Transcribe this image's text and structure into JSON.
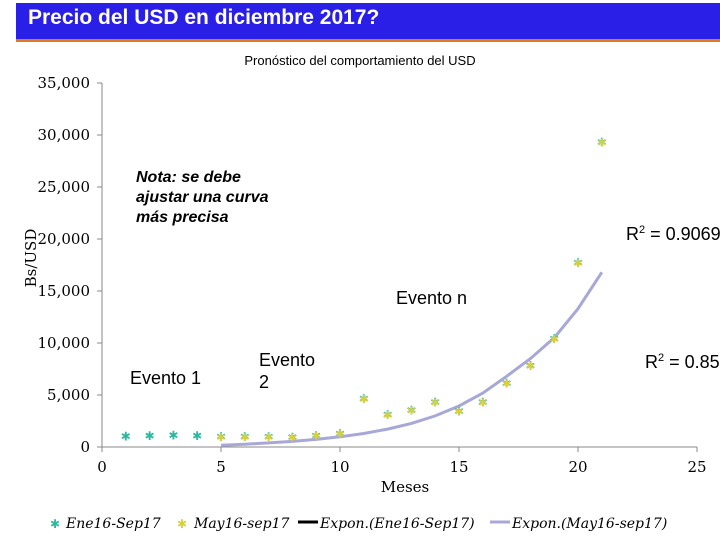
{
  "header": {
    "title": "Precio del USD en diciembre 2017?"
  },
  "chart_data": {
    "type": "scatter",
    "title": "Pronóstico del comportamiento del USD",
    "xlabel": "Meses",
    "ylabel": "Bs/USD",
    "xlim": [
      0,
      25
    ],
    "ylim": [
      0,
      35000
    ],
    "x_ticks": [
      "0",
      "5",
      "10",
      "15",
      "20",
      "25"
    ],
    "y_ticks": [
      "0",
      "5,000",
      "10,000",
      "15,000",
      "20,000",
      "25,000",
      "30,000",
      "35,000"
    ],
    "series": [
      {
        "name": "Ene16-Sep17",
        "marker": "star",
        "color": "#2fb8a0",
        "x": [
          1,
          2,
          3,
          4,
          5,
          6,
          7,
          8,
          9,
          10,
          11,
          12,
          13,
          14,
          15,
          16,
          17,
          18,
          19,
          20,
          21
        ],
        "y": [
          1000,
          1050,
          1100,
          1050,
          950,
          950,
          950,
          900,
          1050,
          1250,
          4600,
          3100,
          3500,
          4300,
          3400,
          4300,
          6100,
          7800,
          10400,
          17700,
          29300
        ]
      },
      {
        "name": "May16-sep17",
        "marker": "star",
        "color": "#d8d040",
        "x": [
          5,
          6,
          7,
          8,
          9,
          10,
          11,
          12,
          13,
          14,
          15,
          16,
          17,
          18,
          19,
          20,
          21
        ],
        "y": [
          950,
          950,
          950,
          900,
          1050,
          1250,
          4600,
          3100,
          3500,
          4300,
          3400,
          4300,
          6100,
          7800,
          10400,
          17700,
          29300
        ]
      },
      {
        "name": "Expon.(Ene16-Sep17)",
        "type": "trendline",
        "color": "#000000"
      },
      {
        "name": "Expon.(May16-sep17)",
        "type": "trendline",
        "color": "#a8a8d8",
        "x": [
          5,
          6,
          7,
          8,
          9,
          10,
          11,
          12,
          13,
          14,
          15,
          16,
          17,
          18,
          19,
          20,
          21
        ],
        "y": [
          170,
          270,
          390,
          540,
          730,
          980,
          1300,
          1720,
          2270,
          2990,
          3940,
          5180,
          6800,
          8500,
          10500,
          13300,
          16800
        ]
      }
    ],
    "annotations": [
      {
        "text_lines": [
          "Nota: se debe",
          "ajustar una curva",
          "más precisa"
        ]
      },
      {
        "text": "R2 = 0.9069",
        "base": "R",
        "sup": "2",
        "rest": " = 0.9069"
      },
      {
        "text": "Evento n"
      },
      {
        "text_lines": [
          "Evento",
          "2"
        ]
      },
      {
        "text": "Evento 1"
      },
      {
        "text": "R2 = 0.85",
        "base": "R",
        "sup": "2",
        "rest": " = 0.85"
      }
    ]
  }
}
